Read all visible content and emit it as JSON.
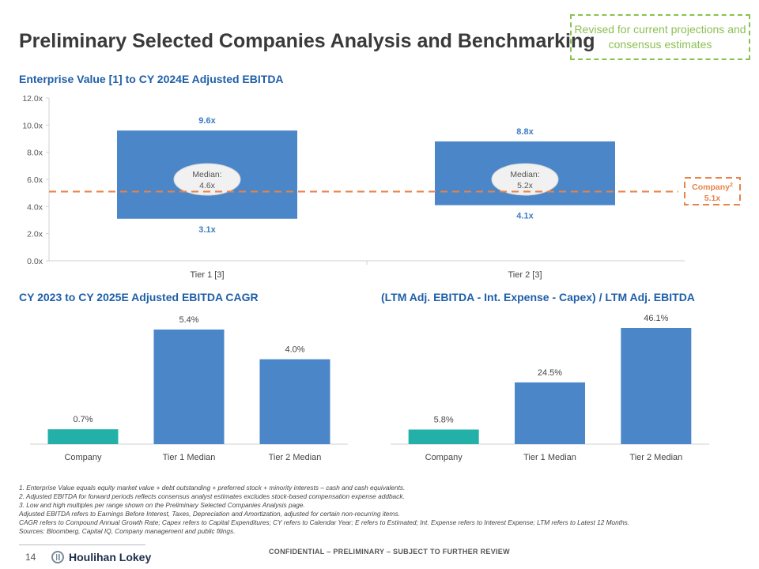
{
  "header": {
    "title": "Preliminary Selected Companies Analysis and Benchmarking",
    "revised_note": "Revised for current projections and consensus estimates"
  },
  "colors": {
    "blue": "#4a86c8",
    "teal": "#23b0a8",
    "orange": "#e8834a",
    "label_blue": "#3d7cc4",
    "green": "#8cc152"
  },
  "chart_data": [
    {
      "type": "bar",
      "title": "Enterprise Value [1] to CY 2024E Adjusted EBITDA",
      "ylim": [
        0,
        12
      ],
      "yticks": [
        "0.0x",
        "2.0x",
        "4.0x",
        "6.0x",
        "8.0x",
        "10.0x",
        "12.0x"
      ],
      "categories": [
        "Tier 1 [3]",
        "Tier 2 [3]"
      ],
      "ranges": [
        {
          "low": 3.1,
          "high": 9.6,
          "low_label": "3.1x",
          "high_label": "9.6x",
          "median": 4.6,
          "median_title": "Median:",
          "median_value": "4.6x"
        },
        {
          "low": 4.1,
          "high": 8.8,
          "low_label": "4.1x",
          "high_label": "8.8x",
          "median": 5.2,
          "median_title": "Median:",
          "median_value": "5.2x"
        }
      ],
      "reference": {
        "value": 5.1,
        "label": "Company",
        "superscript": "2",
        "value_label": "5.1x"
      }
    },
    {
      "type": "bar",
      "title": "CY 2023 to CY 2025E Adjusted EBITDA CAGR",
      "categories": [
        "Company",
        "Tier 1 Median",
        "Tier 2 Median"
      ],
      "values": [
        0.7,
        5.4,
        4.0
      ],
      "labels": [
        "0.7%",
        "5.4%",
        "4.0%"
      ],
      "ymax": 5.4
    },
    {
      "type": "bar",
      "title": "(LTM Adj. EBITDA - Int. Expense - Capex) / LTM Adj. EBITDA",
      "categories": [
        "Company",
        "Tier 1 Median",
        "Tier 2 Median"
      ],
      "values": [
        5.8,
        24.5,
        46.1
      ],
      "labels": [
        "5.8%",
        "24.5%",
        "46.1%"
      ],
      "ymax": 46.1
    }
  ],
  "footnotes": [
    "1. Enterprise Value equals equity market value + debt outstanding + preferred stock + minority interests – cash and cash equivalents.",
    "2. Adjusted EBITDA for forward periods reflects consensus analyst estimates excludes stock-based compensation expense addback.",
    "3. Low and high multiples per range shown on the Preliminary Selected Companies Analysis page.",
    "Adjusted EBITDA refers to Earnings Before Interest, Taxes, Depreciation and Amortization, adjusted for certain non-recurring items.",
    "CAGR refers to Compound Annual Growth Rate; Capex refers to Capital Expenditures; CY refers to Calendar Year; E refers to Estimated; Int. Expense refers to Interest Expense; LTM refers to Latest 12 Months.",
    "Sources: Bloomberg, Capital IQ, Company management and public filings."
  ],
  "footer": {
    "page_number": "14",
    "logo_text": "Houlihan Lokey",
    "confidential": "CONFIDENTIAL – PRELIMINARY – SUBJECT TO FURTHER REVIEW"
  }
}
